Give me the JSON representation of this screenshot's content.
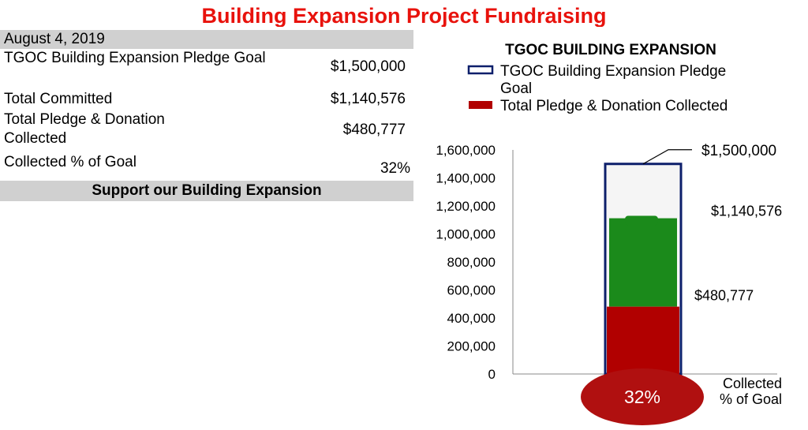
{
  "page": {
    "title": "Building Expansion Project Fundraising"
  },
  "summary": {
    "date": "August 4, 2019",
    "rows": [
      {
        "label": "TGOC Building Expansion  Pledge Goal",
        "value": "$1,500,000"
      },
      {
        "label": "Total Committed",
        "value": "$1,140,576"
      },
      {
        "label": "Total Pledge & Donation Collected",
        "value": "$480,777"
      },
      {
        "label": "Collected % of Goal",
        "value": "32%"
      }
    ],
    "footer": "Support our Building Expansion"
  },
  "chart_data": {
    "type": "bar",
    "title": "TGOC BUILDING EXPANSION",
    "categories": [
      "Collected % of Goal"
    ],
    "series": [
      {
        "name": "TGOC Building Expansion  Pledge Goal",
        "values": [
          1500000
        ],
        "color": "#0d1f6b"
      },
      {
        "name": "Total Pledge & Donation Collected",
        "values": [
          480777
        ],
        "color": "#b10000"
      }
    ],
    "committed": 1140576,
    "ylim": [
      0,
      1600000
    ],
    "yticks": [
      "0",
      "200,000",
      "400,000",
      "600,000",
      "800,000",
      "1,000,000",
      "1,200,000",
      "1,400,000",
      "1,600,000"
    ],
    "annotations": {
      "goal": "$1,500,000",
      "committed": "$1,140,576",
      "collected": "$480,777"
    },
    "badge": "32%",
    "colors": {
      "committed": "#1b8a1b",
      "badge": "#b01010"
    }
  }
}
